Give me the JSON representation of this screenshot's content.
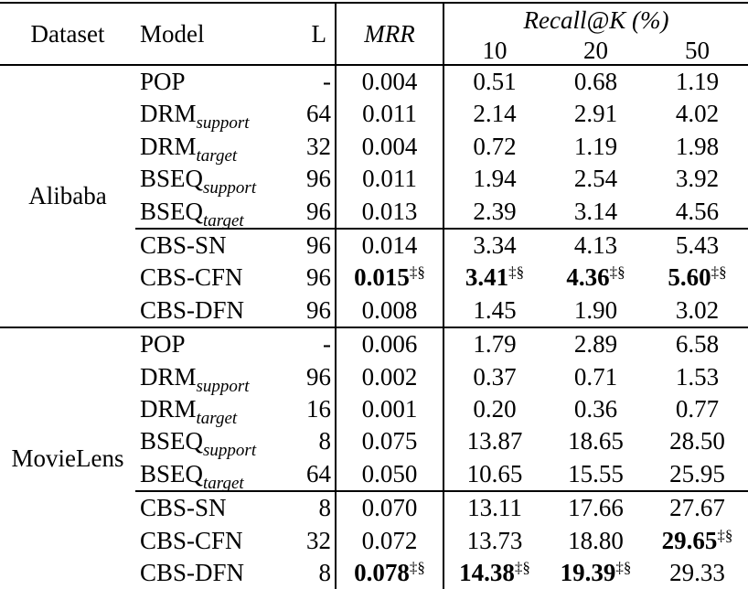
{
  "table": {
    "header": {
      "dataset": "Dataset",
      "model": "Model",
      "length": "L",
      "mrr": "MRR",
      "recall_group": "Recall@K (%)",
      "recall_ks": [
        "10",
        "20",
        "50"
      ]
    },
    "best_marker": "‡§",
    "sections": [
      {
        "dataset": "Alibaba",
        "groups": [
          {
            "rows": [
              {
                "model": "POP",
                "sub": "",
                "L": "-",
                "mrr": {
                  "v": "0.004"
                },
                "r10": {
                  "v": "0.51"
                },
                "r20": {
                  "v": "0.68"
                },
                "r50": {
                  "v": "1.19"
                }
              },
              {
                "model": "DRM",
                "sub": "support",
                "L": "64",
                "mrr": {
                  "v": "0.011"
                },
                "r10": {
                  "v": "2.14"
                },
                "r20": {
                  "v": "2.91"
                },
                "r50": {
                  "v": "4.02"
                }
              },
              {
                "model": "DRM",
                "sub": "target",
                "L": "32",
                "mrr": {
                  "v": "0.004"
                },
                "r10": {
                  "v": "0.72"
                },
                "r20": {
                  "v": "1.19"
                },
                "r50": {
                  "v": "1.98"
                }
              },
              {
                "model": "BSEQ",
                "sub": "support",
                "L": "96",
                "mrr": {
                  "v": "0.011"
                },
                "r10": {
                  "v": "1.94"
                },
                "r20": {
                  "v": "2.54"
                },
                "r50": {
                  "v": "3.92"
                }
              },
              {
                "model": "BSEQ",
                "sub": "target",
                "L": "96",
                "mrr": {
                  "v": "0.013"
                },
                "r10": {
                  "v": "2.39"
                },
                "r20": {
                  "v": "3.14"
                },
                "r50": {
                  "v": "4.56"
                }
              }
            ]
          },
          {
            "rows": [
              {
                "model": "CBS-SN",
                "sub": "",
                "L": "96",
                "mrr": {
                  "v": "0.014"
                },
                "r10": {
                  "v": "3.34"
                },
                "r20": {
                  "v": "4.13"
                },
                "r50": {
                  "v": "5.43"
                }
              },
              {
                "model": "CBS-CFN",
                "sub": "",
                "L": "96",
                "mrr": {
                  "v": "0.015",
                  "bold": true,
                  "mark": "‡§"
                },
                "r10": {
                  "v": "3.41",
                  "bold": true,
                  "mark": "‡§"
                },
                "r20": {
                  "v": "4.36",
                  "bold": true,
                  "mark": "‡§"
                },
                "r50": {
                  "v": "5.60",
                  "bold": true,
                  "mark": "‡§"
                }
              },
              {
                "model": "CBS-DFN",
                "sub": "",
                "L": "96",
                "mrr": {
                  "v": "0.008"
                },
                "r10": {
                  "v": "1.45"
                },
                "r20": {
                  "v": "1.90"
                },
                "r50": {
                  "v": "3.02"
                }
              }
            ]
          }
        ]
      },
      {
        "dataset": "MovieLens",
        "groups": [
          {
            "rows": [
              {
                "model": "POP",
                "sub": "",
                "L": "-",
                "mrr": {
                  "v": "0.006"
                },
                "r10": {
                  "v": "1.79"
                },
                "r20": {
                  "v": "2.89"
                },
                "r50": {
                  "v": "6.58"
                }
              },
              {
                "model": "DRM",
                "sub": "support",
                "L": "96",
                "mrr": {
                  "v": "0.002"
                },
                "r10": {
                  "v": "0.37"
                },
                "r20": {
                  "v": "0.71"
                },
                "r50": {
                  "v": "1.53"
                }
              },
              {
                "model": "DRM",
                "sub": "target",
                "L": "16",
                "mrr": {
                  "v": "0.001"
                },
                "r10": {
                  "v": "0.20"
                },
                "r20": {
                  "v": "0.36"
                },
                "r50": {
                  "v": "0.77"
                }
              },
              {
                "model": "BSEQ",
                "sub": "support",
                "L": "8",
                "mrr": {
                  "v": "0.075"
                },
                "r10": {
                  "v": "13.87"
                },
                "r20": {
                  "v": "18.65"
                },
                "r50": {
                  "v": "28.50"
                }
              },
              {
                "model": "BSEQ",
                "sub": "target",
                "L": "64",
                "mrr": {
                  "v": "0.050"
                },
                "r10": {
                  "v": "10.65"
                },
                "r20": {
                  "v": "15.55"
                },
                "r50": {
                  "v": "25.95"
                }
              }
            ]
          },
          {
            "rows": [
              {
                "model": "CBS-SN",
                "sub": "",
                "L": "8",
                "mrr": {
                  "v": "0.070"
                },
                "r10": {
                  "v": "13.11"
                },
                "r20": {
                  "v": "17.66"
                },
                "r50": {
                  "v": "27.67"
                }
              },
              {
                "model": "CBS-CFN",
                "sub": "",
                "L": "32",
                "mrr": {
                  "v": "0.072"
                },
                "r10": {
                  "v": "13.73"
                },
                "r20": {
                  "v": "18.80"
                },
                "r50": {
                  "v": "29.65",
                  "bold": true,
                  "mark": "‡§"
                }
              },
              {
                "model": "CBS-DFN",
                "sub": "",
                "L": "8",
                "mrr": {
                  "v": "0.078",
                  "bold": true,
                  "mark": "‡§"
                },
                "r10": {
                  "v": "14.38",
                  "bold": true,
                  "mark": "‡§"
                },
                "r20": {
                  "v": "19.39",
                  "bold": true,
                  "mark": "‡§"
                },
                "r50": {
                  "v": "29.33"
                }
              }
            ]
          }
        ]
      }
    ]
  }
}
